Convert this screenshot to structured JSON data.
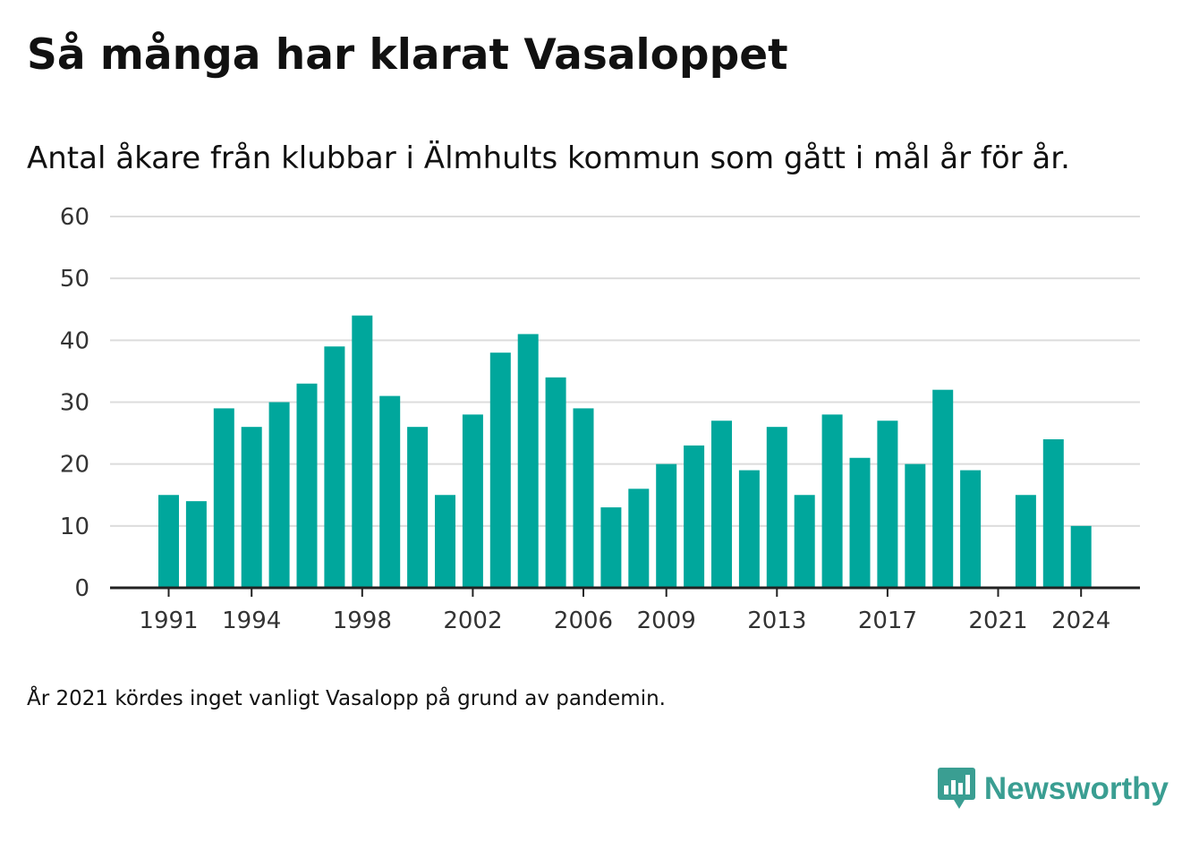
{
  "title": "Så många har klarat Vasaloppet",
  "subtitle": "Antal åkare från klubbar i Älmhults kommun som gått i mål år för år.",
  "note": "År 2021 kördes inget vanligt Vasalopp på grund av pandemin.",
  "brand": {
    "name": "Newsworthy",
    "icon": "newsworthy-logo-icon",
    "color": "#3a9e92"
  },
  "colors": {
    "bar": "#00a79c",
    "grid": "#dcdcdc",
    "axis": "#222222",
    "text": "#333333"
  },
  "chart_data": {
    "type": "bar",
    "categories": [
      1991,
      1992,
      1993,
      1994,
      1995,
      1996,
      1997,
      1998,
      1999,
      2000,
      2001,
      2002,
      2003,
      2004,
      2005,
      2006,
      2007,
      2008,
      2009,
      2010,
      2011,
      2012,
      2013,
      2014,
      2015,
      2016,
      2017,
      2018,
      2019,
      2020,
      2021,
      2022,
      2023,
      2024
    ],
    "values": [
      15,
      14,
      29,
      26,
      30,
      33,
      39,
      44,
      31,
      26,
      15,
      28,
      38,
      41,
      34,
      29,
      13,
      16,
      20,
      23,
      27,
      19,
      26,
      15,
      28,
      21,
      27,
      20,
      32,
      19,
      0,
      15,
      24,
      10
    ],
    "xticks": [
      1991,
      1994,
      1998,
      2002,
      2006,
      2009,
      2013,
      2017,
      2021,
      2024
    ],
    "yticks": [
      0,
      10,
      20,
      30,
      40,
      50,
      60
    ],
    "ylim": [
      0,
      60
    ],
    "xlabel": "",
    "ylabel": "",
    "grid": true
  }
}
